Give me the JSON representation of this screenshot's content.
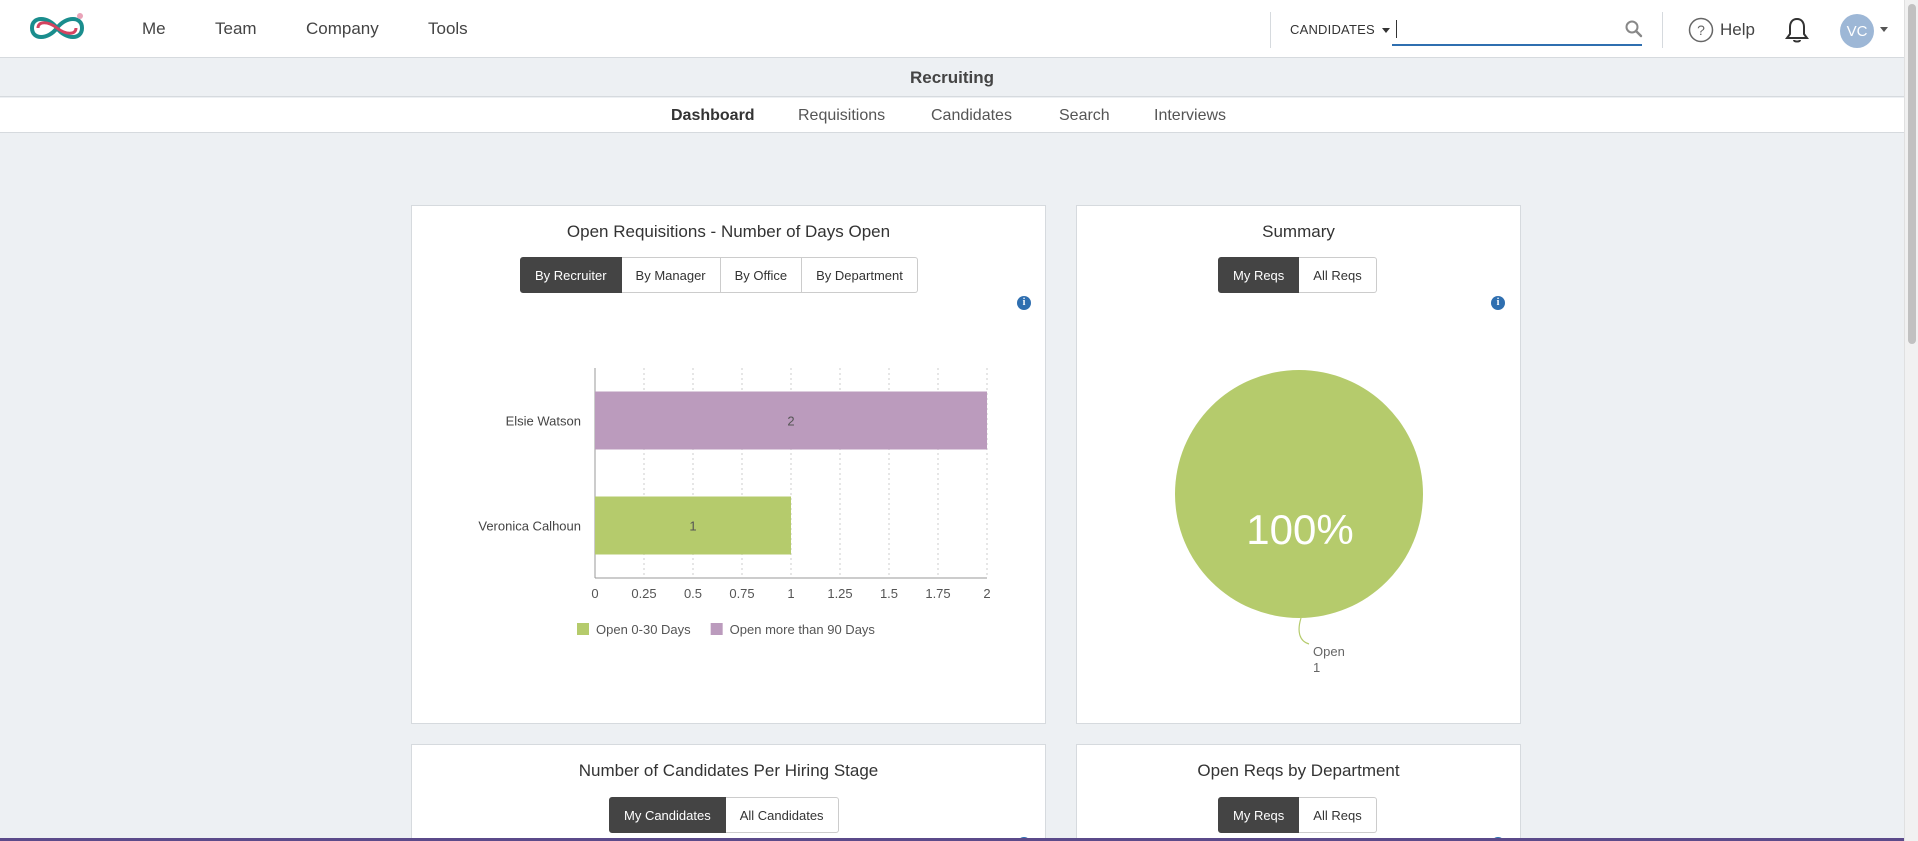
{
  "nav": {
    "items": [
      "Me",
      "Team",
      "Company",
      "Tools"
    ],
    "candidates_dropdown": "CANDIDATES",
    "search_value": "",
    "help_label": "Help",
    "avatar_initials": "VC"
  },
  "subheader": {
    "title": "Recruiting",
    "tabs": [
      "Dashboard",
      "Requisitions",
      "Candidates",
      "Search",
      "Interviews"
    ],
    "active_tab": "Dashboard"
  },
  "panels": {
    "open_reqs": {
      "title": "Open Requisitions - Number of Days Open",
      "buttons": [
        "By Recruiter",
        "By Manager",
        "By Office",
        "By Department"
      ],
      "active": "By Recruiter"
    },
    "summary": {
      "title": "Summary",
      "buttons": [
        "My Reqs",
        "All Reqs"
      ],
      "active": "My Reqs",
      "pie_label": "100%",
      "slice_name": "Open",
      "slice_count": "1"
    },
    "hiring_stage": {
      "title": "Number of Candidates Per Hiring Stage",
      "buttons": [
        "My Candidates",
        "All Candidates"
      ],
      "active": "My Candidates"
    },
    "by_department": {
      "title": "Open Reqs by Department",
      "buttons": [
        "My Reqs",
        "All Reqs"
      ],
      "active": "My Reqs"
    }
  },
  "chart_data": [
    {
      "type": "bar",
      "orientation": "horizontal",
      "categories": [
        "Elsie Watson",
        "Veronica Calhoun"
      ],
      "series": [
        {
          "name": "Open 0-30 Days",
          "values": [
            0,
            1
          ],
          "color": "#b5cb6c"
        },
        {
          "name": "Open more than 90 Days",
          "values": [
            2,
            0
          ],
          "color": "#bb9bbd"
        }
      ],
      "xlim": [
        0,
        2
      ],
      "xticks": [
        "0",
        "0.25",
        "0.5",
        "0.75",
        "1",
        "1.25",
        "1.5",
        "1.75",
        "2"
      ],
      "grid": true,
      "legend": "bottom"
    },
    {
      "type": "pie",
      "slices": [
        {
          "name": "Open",
          "value": 1,
          "percent": 100,
          "color": "#b5cb6c"
        }
      ]
    }
  ],
  "colors": {
    "accent": "#2f6fb0",
    "button_active": "#444444",
    "green": "#b5cb6c",
    "purple": "#bb9bbd"
  }
}
